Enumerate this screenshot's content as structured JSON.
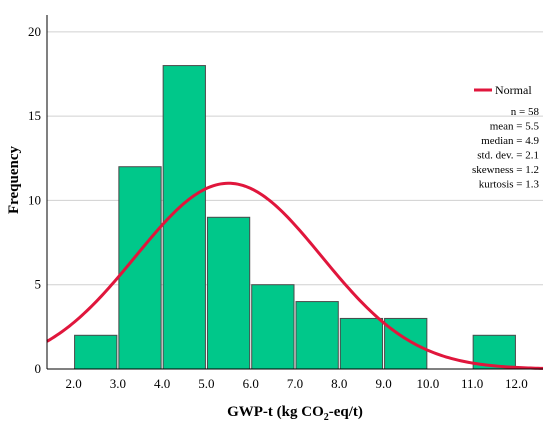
{
  "chart_data": {
    "type": "bar",
    "bins": [
      {
        "x0": 2.0,
        "x1": 3.0,
        "value": 2
      },
      {
        "x0": 3.0,
        "x1": 4.0,
        "value": 12
      },
      {
        "x0": 4.0,
        "x1": 5.0,
        "value": 18
      },
      {
        "x0": 5.0,
        "x1": 6.0,
        "value": 9
      },
      {
        "x0": 6.0,
        "x1": 7.0,
        "value": 5
      },
      {
        "x0": 7.0,
        "x1": 8.0,
        "value": 4
      },
      {
        "x0": 8.0,
        "x1": 9.0,
        "value": 3
      },
      {
        "x0": 9.0,
        "x1": 10.0,
        "value": 3
      },
      {
        "x0": 10.0,
        "x1": 11.0,
        "value": 0
      },
      {
        "x0": 11.0,
        "x1": 12.0,
        "value": 2
      }
    ],
    "x_ticks": [
      "2.0",
      "3.0",
      "4.0",
      "5.0",
      "6.0",
      "7.0",
      "8.0",
      "9.0",
      "10.0",
      "11.0",
      "12.0"
    ],
    "y_ticks": [
      "0",
      "5",
      "10",
      "15",
      "20"
    ],
    "xlim": [
      1.4,
      12.6
    ],
    "ylim": [
      0,
      21
    ],
    "xlabel_main": "GWP-t (kg CO",
    "xlabel_sub": "2",
    "xlabel_end": "-eq/t)",
    "ylabel": "Frequency",
    "grid": "horizontal",
    "bar_color": "#00c88a",
    "bar_edge_color": "#4a4a4a",
    "curve": {
      "name": "Normal",
      "color": "#e0163c",
      "mean": 5.5,
      "sd": 2.1,
      "n": 58,
      "bin_width": 1.0
    },
    "stats": [
      "n = 58",
      "mean = 5.5",
      "median = 4.9",
      "std. dev. = 2.1",
      "skewness = 1.2",
      "kurtosis = 1.3"
    ],
    "legend_position": "right"
  }
}
